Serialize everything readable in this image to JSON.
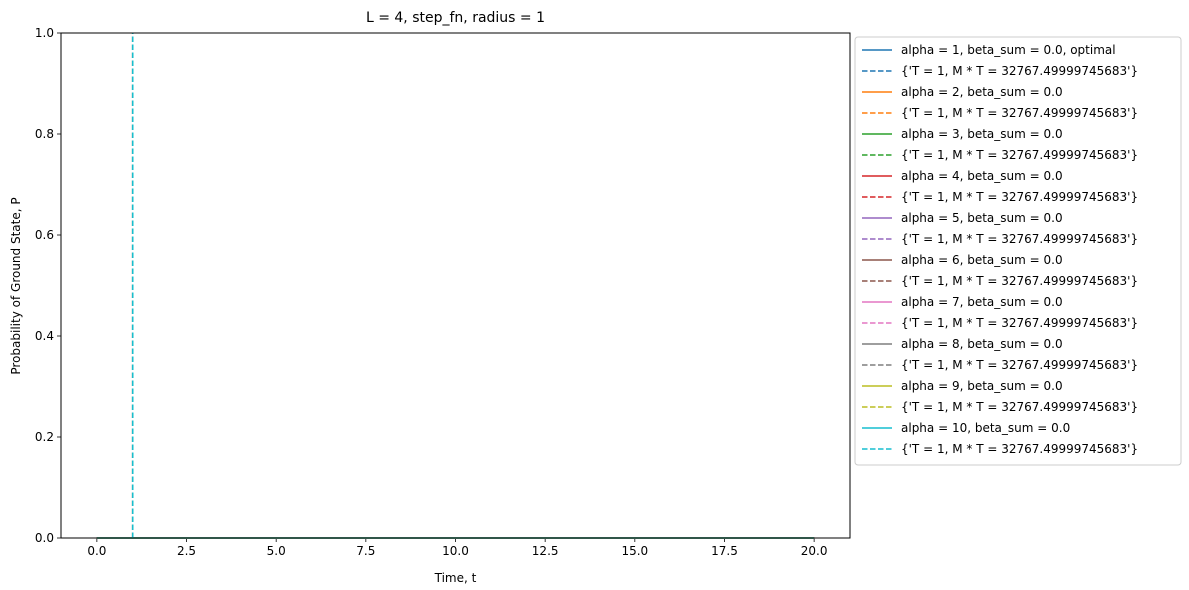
{
  "chart_data": {
    "type": "line",
    "title": "L = 4, step_fn, radius = 1",
    "xlabel": "Time, t",
    "ylabel": "Probability of Ground State, P",
    "xlim": [
      -1.0,
      21.0
    ],
    "ylim": [
      0.0,
      1.0
    ],
    "xticks": [
      0.0,
      2.5,
      5.0,
      7.5,
      10.0,
      12.5,
      15.0,
      17.5,
      20.0
    ],
    "xtick_labels": [
      "0.0",
      "2.5",
      "5.0",
      "7.5",
      "10.0",
      "12.5",
      "15.0",
      "17.5",
      "20.0"
    ],
    "yticks": [
      0.0,
      0.2,
      0.4,
      0.6,
      0.8,
      1.0
    ],
    "ytick_labels": [
      "0.0",
      "0.2",
      "0.4",
      "0.6",
      "0.8",
      "1.0"
    ],
    "grid": false,
    "legend_position": "outside-right-top",
    "series": [
      {
        "name": "alpha = 1, beta_sum = 0.0, optimal",
        "style": "solid",
        "color": "#1f77b4",
        "x": [
          0,
          20
        ],
        "y": [
          0,
          0
        ]
      },
      {
        "name": "{'T = 1, M * T = 32767.49999745683'}",
        "style": "dashed",
        "color": "#1f77b4",
        "x": [
          1,
          1
        ],
        "y": [
          0,
          1
        ]
      },
      {
        "name": "alpha = 2, beta_sum = 0.0",
        "style": "solid",
        "color": "#ff7f0e",
        "x": [
          0,
          20
        ],
        "y": [
          0,
          0
        ]
      },
      {
        "name": "{'T = 1, M * T = 32767.49999745683'}",
        "style": "dashed",
        "color": "#ff7f0e",
        "x": [
          1,
          1
        ],
        "y": [
          0,
          1
        ]
      },
      {
        "name": "alpha = 3, beta_sum = 0.0",
        "style": "solid",
        "color": "#2ca02c",
        "x": [
          0,
          20
        ],
        "y": [
          0,
          0
        ]
      },
      {
        "name": "{'T = 1, M * T = 32767.49999745683'}",
        "style": "dashed",
        "color": "#2ca02c",
        "x": [
          1,
          1
        ],
        "y": [
          0,
          1
        ]
      },
      {
        "name": "alpha = 4, beta_sum = 0.0",
        "style": "solid",
        "color": "#d62728",
        "x": [
          0,
          20
        ],
        "y": [
          0,
          0
        ]
      },
      {
        "name": "{'T = 1, M * T = 32767.49999745683'}",
        "style": "dashed",
        "color": "#d62728",
        "x": [
          1,
          1
        ],
        "y": [
          0,
          1
        ]
      },
      {
        "name": "alpha = 5, beta_sum = 0.0",
        "style": "solid",
        "color": "#9467bd",
        "x": [
          0,
          20
        ],
        "y": [
          0,
          0
        ]
      },
      {
        "name": "{'T = 1, M * T = 32767.49999745683'}",
        "style": "dashed",
        "color": "#9467bd",
        "x": [
          1,
          1
        ],
        "y": [
          0,
          1
        ]
      },
      {
        "name": "alpha = 6, beta_sum = 0.0",
        "style": "solid",
        "color": "#8c564b",
        "x": [
          0,
          20
        ],
        "y": [
          0,
          0
        ]
      },
      {
        "name": "{'T = 1, M * T = 32767.49999745683'}",
        "style": "dashed",
        "color": "#8c564b",
        "x": [
          1,
          1
        ],
        "y": [
          0,
          1
        ]
      },
      {
        "name": "alpha = 7, beta_sum = 0.0",
        "style": "solid",
        "color": "#e377c2",
        "x": [
          0,
          20
        ],
        "y": [
          0,
          0
        ]
      },
      {
        "name": "{'T = 1, M * T = 32767.49999745683'}",
        "style": "dashed",
        "color": "#e377c2",
        "x": [
          1,
          1
        ],
        "y": [
          0,
          1
        ]
      },
      {
        "name": "alpha = 8, beta_sum = 0.0",
        "style": "solid",
        "color": "#7f7f7f",
        "x": [
          0,
          20
        ],
        "y": [
          0,
          0
        ]
      },
      {
        "name": "{'T = 1, M * T = 32767.49999745683'}",
        "style": "dashed",
        "color": "#7f7f7f",
        "x": [
          1,
          1
        ],
        "y": [
          0,
          1
        ]
      },
      {
        "name": "alpha = 9, beta_sum = 0.0",
        "style": "solid",
        "color": "#bcbd22",
        "x": [
          0,
          20
        ],
        "y": [
          0,
          0
        ]
      },
      {
        "name": "{'T = 1, M * T = 32767.49999745683'}",
        "style": "dashed",
        "color": "#bcbd22",
        "x": [
          1,
          1
        ],
        "y": [
          0,
          1
        ]
      },
      {
        "name": "alpha = 10, beta_sum = 0.0",
        "style": "solid",
        "color": "#17becf",
        "x": [
          0,
          20
        ],
        "y": [
          0,
          0
        ]
      },
      {
        "name": "{'T = 1, M * T = 32767.49999745683'}",
        "style": "dashed",
        "color": "#17becf",
        "x": [
          1,
          1
        ],
        "y": [
          0,
          1
        ]
      }
    ]
  }
}
